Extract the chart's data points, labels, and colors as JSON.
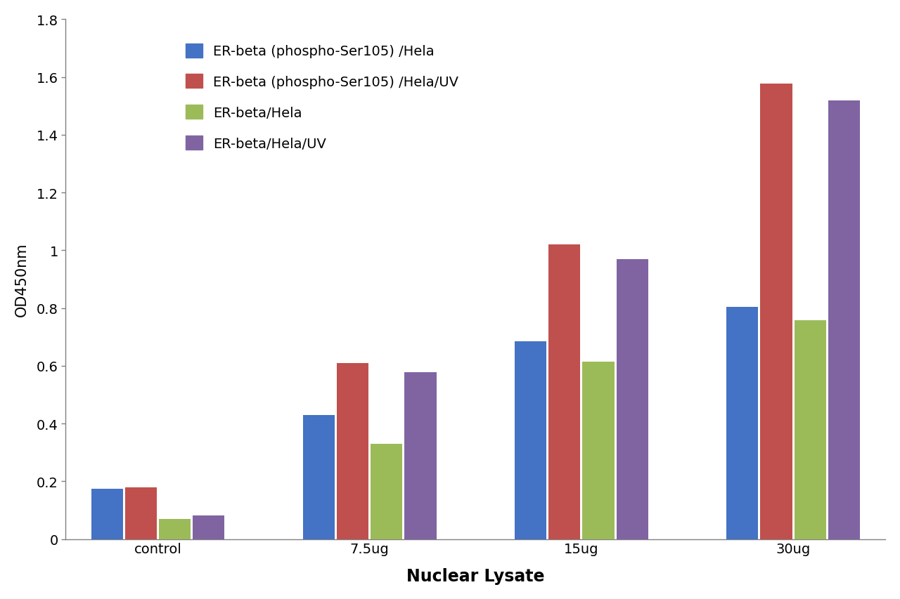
{
  "categories": [
    "control",
    "7.5ug",
    "15ug",
    "30ug"
  ],
  "series": [
    {
      "label": "ER-beta (phospho-Ser105) /Hela",
      "color": "#4472C4",
      "values": [
        0.175,
        0.43,
        0.685,
        0.805
      ]
    },
    {
      "label": "ER-beta (phospho-Ser105) /Hela/UV",
      "color": "#C0504D",
      "values": [
        0.178,
        0.61,
        1.02,
        1.578
      ]
    },
    {
      "label": "ER-beta/Hela",
      "color": "#9BBB59",
      "values": [
        0.07,
        0.33,
        0.615,
        0.758
      ]
    },
    {
      "label": "ER-beta/Hela/UV",
      "color": "#8064A2",
      "values": [
        0.082,
        0.578,
        0.97,
        1.518
      ]
    }
  ],
  "ylabel": "OD450nm",
  "xlabel": "Nuclear Lysate",
  "ylim": [
    0,
    1.8
  ],
  "yticks": [
    0,
    0.2,
    0.4,
    0.6,
    0.8,
    1.0,
    1.2,
    1.4,
    1.6,
    1.8
  ],
  "ytick_labels": [
    "0",
    "0.2",
    "0.4",
    "0.6",
    "0.8",
    "1",
    "1.2",
    "1.4",
    "1.6",
    "1.8"
  ],
  "bar_width": 0.15,
  "group_positions": [
    0.35,
    1.35,
    2.35,
    3.35
  ],
  "background_color": "#FFFFFF",
  "legend_fontsize": 14,
  "axis_ylabel_fontsize": 15,
  "axis_xlabel_fontsize": 17,
  "tick_fontsize": 14,
  "spine_color": "#808080"
}
